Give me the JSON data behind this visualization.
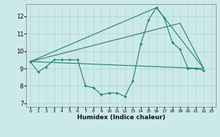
{
  "xlabel": "Humidex (Indice chaleur)",
  "bg_color": "#cce9e9",
  "line_color": "#1a7a6e",
  "grid_color": "#aed4d4",
  "xlim": [
    -0.5,
    23.5
  ],
  "ylim": [
    6.8,
    12.7
  ],
  "yticks": [
    7,
    8,
    9,
    10,
    11,
    12
  ],
  "xticks": [
    0,
    1,
    2,
    3,
    4,
    5,
    6,
    7,
    8,
    9,
    10,
    11,
    12,
    13,
    14,
    15,
    16,
    17,
    18,
    19,
    20,
    21,
    22,
    23
  ],
  "line1_x": [
    0,
    1,
    2,
    3,
    4,
    5,
    6,
    7,
    8,
    9,
    10,
    11,
    12,
    13,
    14,
    15,
    16,
    17,
    18,
    19,
    20,
    21,
    22
  ],
  "line1_y": [
    9.4,
    8.8,
    9.1,
    9.5,
    9.5,
    9.5,
    9.5,
    8.0,
    7.9,
    7.5,
    7.6,
    7.6,
    7.4,
    8.3,
    10.4,
    11.8,
    12.5,
    11.9,
    10.5,
    10.1,
    9.0,
    9.0,
    8.9
  ],
  "line2_x": [
    0,
    22
  ],
  "line2_y": [
    9.4,
    9.0
  ],
  "line3_x": [
    0,
    16,
    22
  ],
  "line3_y": [
    9.4,
    12.5,
    9.0
  ],
  "line4_x": [
    0,
    19,
    22
  ],
  "line4_y": [
    9.4,
    11.6,
    9.0
  ]
}
